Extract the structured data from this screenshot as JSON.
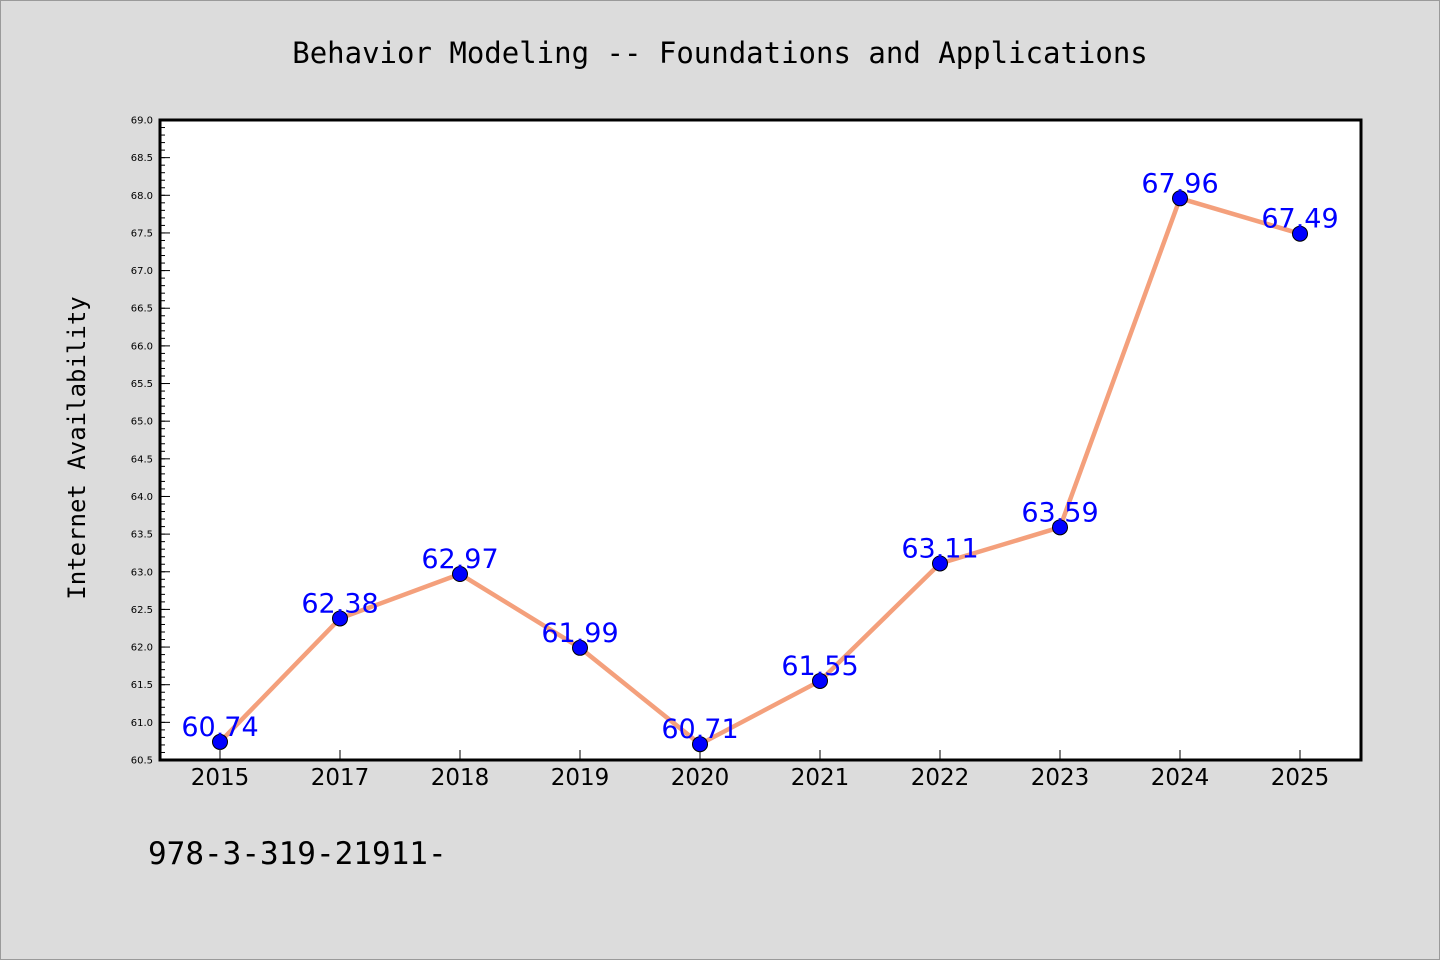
{
  "chart_data": {
    "type": "line",
    "title": "Behavior Modeling -- Foundations and Applications",
    "ylabel": "Internet Availability",
    "xlabel": "",
    "categories": [
      "2015",
      "2017",
      "2018",
      "2019",
      "2020",
      "2021",
      "2022",
      "2023",
      "2024",
      "2025"
    ],
    "series": [
      {
        "values": [
          60.74,
          62.38,
          62.97,
          61.99,
          60.71,
          61.55,
          63.11,
          63.59,
          67.96,
          67.49
        ],
        "labels": [
          "60.74",
          "62.38",
          "62.97",
          "61.99",
          "60.71",
          "61.55",
          "63.11",
          "63.59",
          "67.96",
          "67.49"
        ]
      }
    ],
    "ylim": [
      60.5,
      69.0
    ],
    "yticks": [
      "60.5",
      "61.0",
      "61.5",
      "62.0",
      "62.5",
      "63.0",
      "63.5",
      "64.0",
      "64.5",
      "65.0",
      "65.5",
      "66.0",
      "66.5",
      "67.0",
      "67.5",
      "68.0",
      "68.5",
      "69.0"
    ],
    "grid": false,
    "colors": {
      "line": "#f4a07c",
      "marker": "#0000ff",
      "data_label": "#0000ff",
      "background": "#dcdcdc",
      "plot_background": "#ffffff"
    }
  },
  "footer_text": "978-3-319-21911-"
}
